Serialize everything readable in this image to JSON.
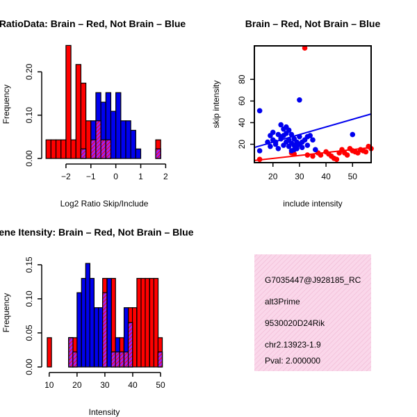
{
  "colors": {
    "red": "#ff0000",
    "blue": "#0000ee",
    "purple": "#a020f0",
    "overlap_hatch": "#ff0000",
    "info_bg": "#fad7ea",
    "info_hatch": "#f0b7d3",
    "pval": "#8b0000"
  },
  "chart_data": [
    {
      "id": "ratio_hist",
      "type": "bar",
      "title": "RatioData: Brain – Red, Not Brain – Blue",
      "xlabel": "Log2 Ratio Skip/Include",
      "ylabel": "Frequency",
      "xlim": [
        -2.75,
        1.85
      ],
      "ylim": [
        0,
        0.26
      ],
      "xticks": [
        -2,
        -1,
        0,
        1,
        2
      ],
      "yticks": [
        0.0,
        0.1,
        0.2
      ],
      "ytick_labels": [
        "0.00",
        "0.10",
        "0.20"
      ],
      "bin_width": 0.2,
      "series": [
        {
          "name": "Brain",
          "color": "red",
          "bins": [
            [
              -2.8,
              0.043
            ],
            [
              -2.6,
              0.043
            ],
            [
              -2.4,
              0.043
            ],
            [
              -2.2,
              0.043
            ],
            [
              -2.0,
              0.261
            ],
            [
              -1.8,
              0.043
            ],
            [
              -1.6,
              0.217
            ],
            [
              -1.4,
              0.174
            ],
            [
              -1.2,
              0.087
            ],
            [
              -1.0,
              0.043
            ],
            [
              -0.8,
              0.087
            ],
            [
              -0.6,
              0.043
            ],
            [
              -0.4,
              0.043
            ],
            [
              1.6,
              0.043
            ]
          ]
        },
        {
          "name": "Not Brain",
          "color": "blue",
          "bins": [
            [
              -1.4,
              0.022
            ],
            [
              -1.0,
              0.087
            ],
            [
              -0.8,
              0.152
            ],
            [
              -0.6,
              0.13
            ],
            [
              -0.4,
              0.152
            ],
            [
              -0.2,
              0.109
            ],
            [
              0.0,
              0.152
            ],
            [
              0.2,
              0.087
            ],
            [
              0.4,
              0.087
            ],
            [
              0.6,
              0.065
            ],
            [
              0.8,
              0.022
            ],
            [
              1.6,
              0.022
            ]
          ]
        }
      ]
    },
    {
      "id": "scatter",
      "type": "scatter",
      "title": "Brain – Red, Not Brain – Blue",
      "xlabel": "include intensity",
      "ylabel": "skip intensity",
      "xlim": [
        13,
        57
      ],
      "ylim": [
        3,
        111
      ],
      "xticks": [
        20,
        30,
        40,
        50
      ],
      "yticks": [
        20,
        40,
        60,
        80
      ],
      "series": [
        {
          "name": "Brain",
          "color": "red",
          "points": [
            [
              32,
              109
            ],
            [
              15,
              6
            ],
            [
              28,
              11
            ],
            [
              35,
              9
            ],
            [
              37,
              12
            ],
            [
              38,
              10
            ],
            [
              40,
              13
            ],
            [
              41,
              11
            ],
            [
              42,
              9
            ],
            [
              43,
              7
            ],
            [
              44,
              6
            ],
            [
              45,
              12
            ],
            [
              46,
              15
            ],
            [
              47,
              12
            ],
            [
              48,
              10
            ],
            [
              50,
              14
            ],
            [
              51,
              13
            ],
            [
              52,
              12
            ],
            [
              53,
              15
            ],
            [
              54,
              14
            ],
            [
              55,
              13
            ],
            [
              56,
              18
            ],
            [
              57,
              16
            ],
            [
              49,
              16
            ],
            [
              27,
              12
            ],
            [
              33,
              10
            ]
          ],
          "fit": [
            [
              13,
              5
            ],
            [
              57,
              17
            ]
          ]
        },
        {
          "name": "Not Brain",
          "color": "blue",
          "points": [
            [
              15,
              51
            ],
            [
              15,
              14
            ],
            [
              18,
              22
            ],
            [
              19,
              18
            ],
            [
              19,
              28
            ],
            [
              20,
              31
            ],
            [
              20,
              24
            ],
            [
              21,
              20
            ],
            [
              22,
              16
            ],
            [
              22,
              29
            ],
            [
              23,
              38
            ],
            [
              23,
              25
            ],
            [
              24,
              34
            ],
            [
              24,
              19
            ],
            [
              24,
              28
            ],
            [
              25,
              22
            ],
            [
              25,
              36
            ],
            [
              25,
              30
            ],
            [
              26,
              24
            ],
            [
              26,
              18
            ],
            [
              27,
              21
            ],
            [
              27,
              29
            ],
            [
              27,
              14
            ],
            [
              28,
              15
            ],
            [
              28,
              19
            ],
            [
              28,
              25
            ],
            [
              29,
              16
            ],
            [
              29,
              22
            ],
            [
              29,
              18
            ],
            [
              30,
              61
            ],
            [
              30,
              27
            ],
            [
              30,
              20
            ],
            [
              31,
              17
            ],
            [
              31,
              22
            ],
            [
              32,
              24
            ],
            [
              33,
              19
            ],
            [
              33,
              27
            ],
            [
              34,
              28
            ],
            [
              35,
              24
            ],
            [
              36,
              15
            ],
            [
              23,
              27
            ],
            [
              26,
              33
            ],
            [
              21,
              22
            ],
            [
              50,
              29
            ]
          ],
          "fit": [
            [
              13,
              17
            ],
            [
              57,
              48
            ]
          ]
        }
      ]
    },
    {
      "id": "intensity_hist",
      "type": "bar",
      "title": "Gene Itensity: Brain – Red, Not Brain – Blue",
      "xlabel": "Intensity",
      "ylabel": "Frequency",
      "xlim": [
        9.3,
        50.5
      ],
      "ylim": [
        0,
        0.153
      ],
      "xticks": [
        10,
        20,
        30,
        40,
        50
      ],
      "yticks": [
        0.0,
        0.05,
        0.1,
        0.15
      ],
      "ytick_labels": [
        "0.00",
        "0.05",
        "0.10",
        "0.15"
      ],
      "bin_width": 1.53,
      "series": [
        {
          "name": "Brain",
          "color": "red",
          "bins": [
            [
              9.3,
              0.043
            ],
            [
              17.0,
              0.043
            ],
            [
              18.5,
              0.043
            ],
            [
              29.2,
              0.13
            ],
            [
              32.3,
              0.13
            ],
            [
              33.8,
              0.022
            ],
            [
              35.3,
              0.043
            ],
            [
              36.9,
              0.022
            ],
            [
              38.4,
              0.087
            ],
            [
              39.9,
              0.087
            ],
            [
              41.5,
              0.13
            ],
            [
              43.0,
              0.13
            ],
            [
              44.5,
              0.13
            ],
            [
              46.1,
              0.13
            ],
            [
              47.6,
              0.13
            ],
            [
              49.1,
              0.043
            ]
          ]
        },
        {
          "name": "Not Brain",
          "color": "blue",
          "bins": [
            [
              17.0,
              0.043
            ],
            [
              18.5,
              0.022
            ],
            [
              20.0,
              0.109
            ],
            [
              21.6,
              0.13
            ],
            [
              23.1,
              0.152
            ],
            [
              24.6,
              0.13
            ],
            [
              26.2,
              0.087
            ],
            [
              27.7,
              0.087
            ],
            [
              29.2,
              0.109
            ],
            [
              30.8,
              0.13
            ],
            [
              32.3,
              0.022
            ],
            [
              33.8,
              0.043
            ],
            [
              35.3,
              0.022
            ],
            [
              36.9,
              0.087
            ],
            [
              38.4,
              0.065
            ],
            [
              49.1,
              0.022
            ]
          ]
        }
      ]
    }
  ],
  "info_panel": {
    "lines": [
      "G7035447@J928185_RC",
      "alt3Prime",
      "9530020D24Rik",
      "chr2.13923-1.9"
    ],
    "pval": "Pval: 2.000000"
  }
}
